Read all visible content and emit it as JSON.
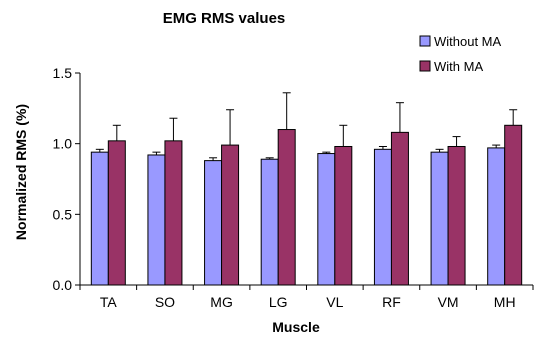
{
  "chart_data": {
    "type": "bar",
    "title": "EMG RMS values",
    "xlabel": "Muscle",
    "ylabel": "Normalized RMS (%)",
    "ylim": [
      0,
      1.5
    ],
    "yticks": [
      "0.0",
      "0.5",
      "1.0",
      "1.5"
    ],
    "categories": [
      "TA",
      "SO",
      "MG",
      "LG",
      "VL",
      "RF",
      "VM",
      "MH"
    ],
    "series": [
      {
        "name": "Without MA",
        "color": "#9999ff",
        "values": [
          0.94,
          0.92,
          0.88,
          0.89,
          0.93,
          0.96,
          0.94,
          0.97
        ],
        "errors": [
          0.02,
          0.02,
          0.02,
          0.01,
          0.01,
          0.02,
          0.02,
          0.02
        ]
      },
      {
        "name": "With MA",
        "color": "#993366",
        "values": [
          1.02,
          1.02,
          0.99,
          1.1,
          0.98,
          1.08,
          0.98,
          1.13
        ],
        "errors": [
          0.11,
          0.16,
          0.25,
          0.26,
          0.15,
          0.21,
          0.07,
          0.11
        ]
      }
    ],
    "legend": "top-right",
    "grid": false
  }
}
